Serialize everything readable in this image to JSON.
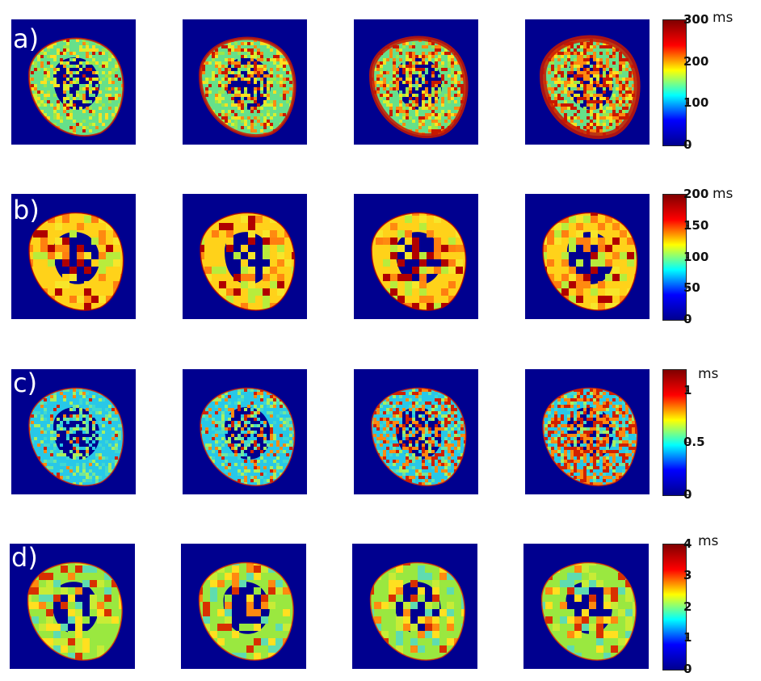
{
  "rows": [
    {
      "label": "a)",
      "unit": "ms",
      "ticks": [
        "300",
        "200",
        "100",
        "0"
      ],
      "tick_values": [
        300,
        200,
        100,
        0
      ],
      "max": 300
    },
    {
      "label": "b)",
      "unit": "ms",
      "ticks": [
        "200",
        "150",
        "100",
        "50",
        "0"
      ],
      "tick_values": [
        200,
        150,
        100,
        50,
        0
      ],
      "max": 200
    },
    {
      "label": "c)",
      "unit": "ms",
      "ticks": [
        "1",
        "0.5",
        "0"
      ],
      "tick_values": [
        1,
        0.5,
        0
      ],
      "max": 1.2
    },
    {
      "label": "d)",
      "unit": "ms",
      "ticks": [
        "4",
        "3",
        "2",
        "1",
        "0"
      ],
      "tick_values": [
        4,
        3,
        2,
        1,
        0
      ],
      "max": 4
    }
  ],
  "colors": {
    "background": "#00008f",
    "colormap": [
      "#00008f",
      "#0000ff",
      "#00ffff",
      "#ffff00",
      "#ff0000",
      "#800000"
    ]
  }
}
